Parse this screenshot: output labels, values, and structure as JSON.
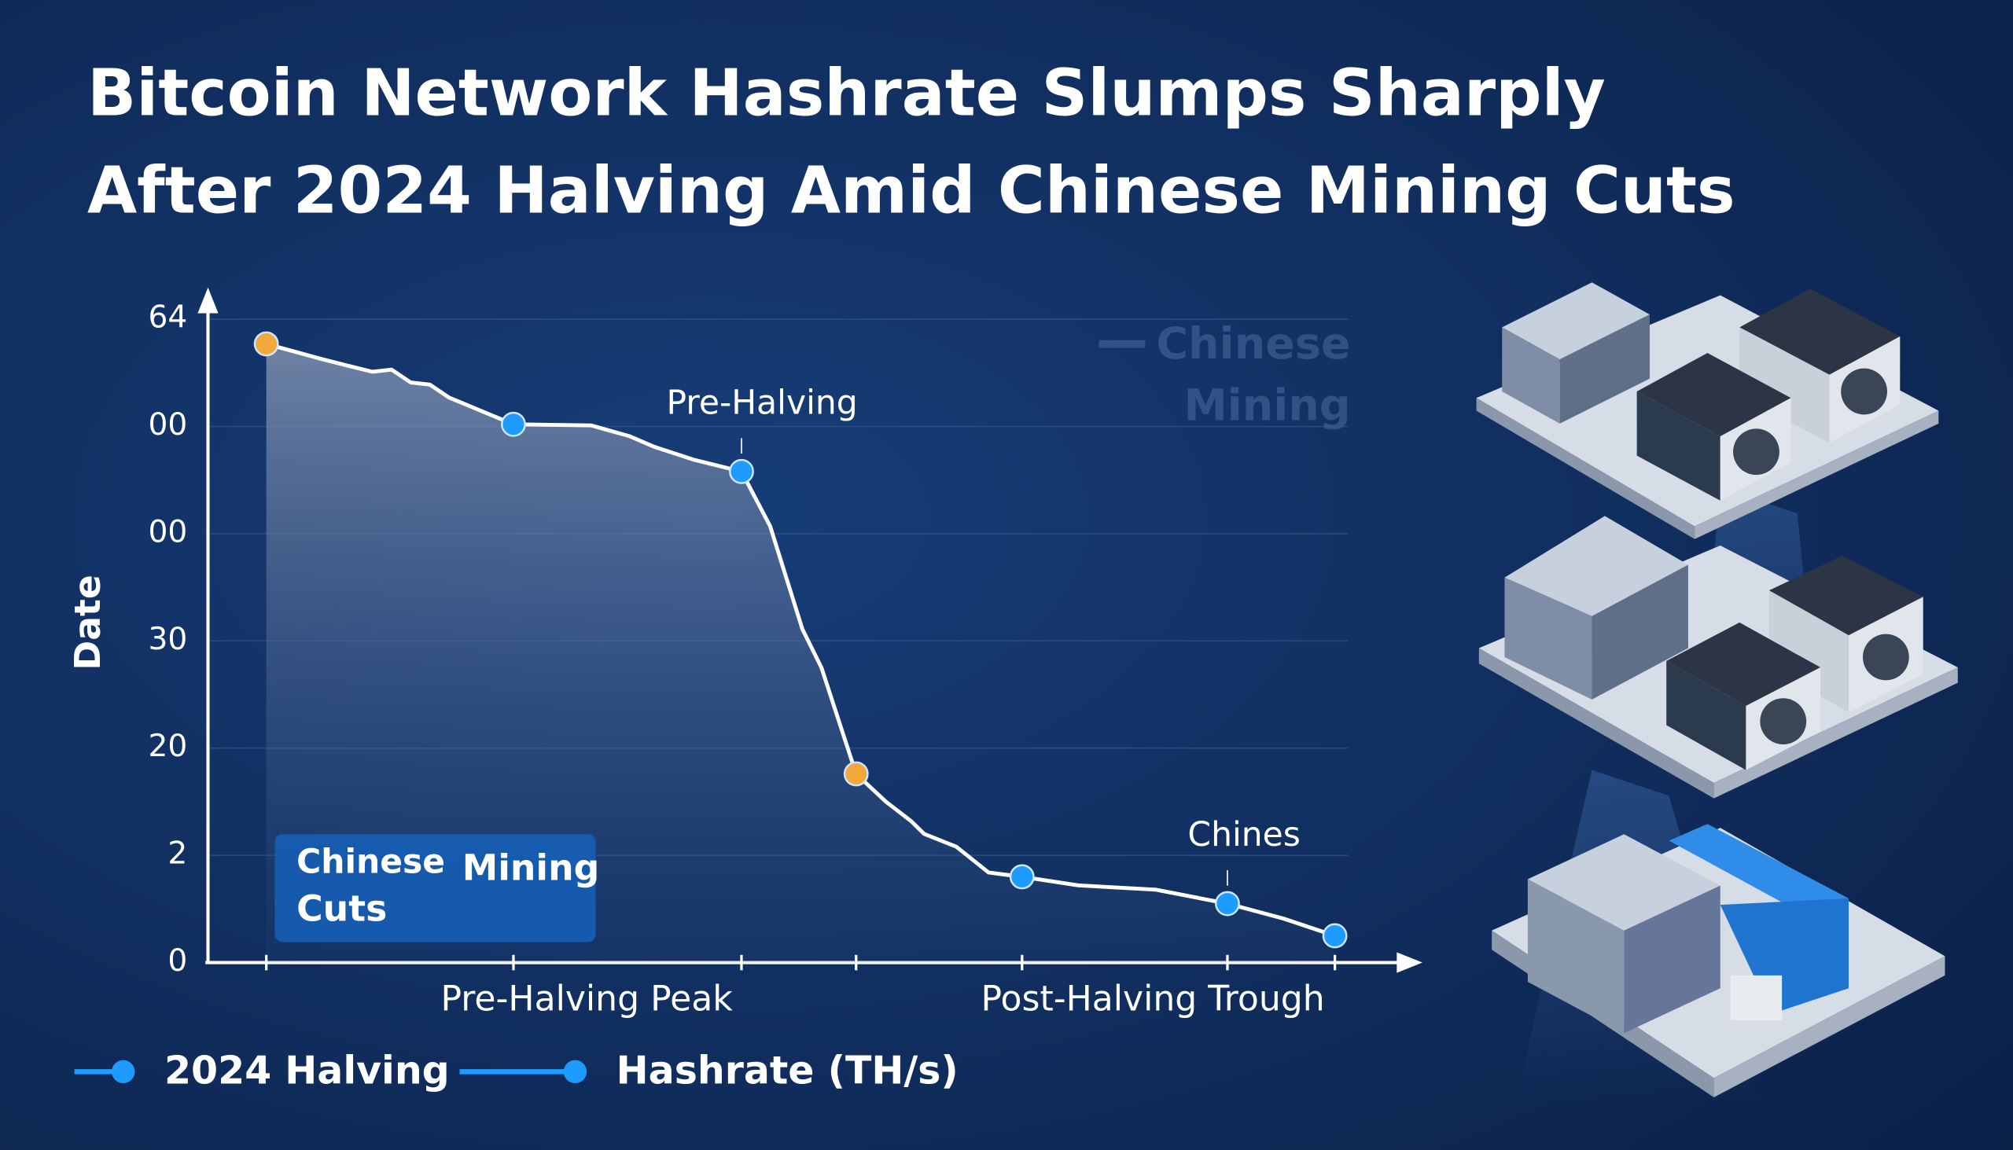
{
  "chart_data": {
    "type": "line",
    "title": [
      "Bitcoin Network Hashrate Slumps Sharply",
      "After 2024 Halving Amid Chinese Mining Cuts"
    ],
    "ylabel": "Date",
    "x_labels": [
      "Pre-Halving Peak",
      "Post-Halving Trough"
    ],
    "xlim": [
      0,
      100
    ],
    "ylim": [
      0,
      62
    ],
    "yticks": [
      0,
      {
        "value": 10,
        "label": "2"
      },
      20,
      30,
      {
        "value": 40,
        "label": "00"
      },
      {
        "value": 50,
        "label": "00"
      },
      {
        "value": 60,
        "label": "64"
      }
    ],
    "grid": true,
    "x": [
      5.1,
      9.7,
      11.8,
      14.0,
      15.6,
      17.2,
      18.8,
      20.4,
      25.8,
      32.3,
      35.5,
      37.6,
      40.9,
      44.9,
      47.3,
      50.0,
      51.6,
      54.5,
      57.0,
      59.1,
      60.2,
      62.9,
      65.6,
      68.4,
      73.1,
      79.6,
      85.6,
      90.3,
      94.6
    ],
    "series": [
      {
        "name": "Hashrate (TH/s)",
        "color": "#ffffff",
        "values": [
          57.7,
          56.3,
          55.7,
          55.1,
          55.3,
          54.1,
          53.9,
          52.7,
          50.2,
          50.1,
          49.1,
          48.1,
          46.9,
          45.8,
          40.7,
          31.1,
          27.5,
          17.6,
          15.0,
          13.2,
          12.0,
          10.8,
          8.4,
          8.0,
          7.2,
          6.8,
          5.5,
          4.1,
          2.5
        ]
      }
    ],
    "highlight_points": [
      {
        "index": 0,
        "color": "#f2a93b"
      },
      {
        "index": 8,
        "color": "#1e9bff"
      },
      {
        "index": 13,
        "color": "#1e9bff"
      },
      {
        "index": 17,
        "color": "#f2a93b"
      },
      {
        "index": 23,
        "color": "#1e9bff"
      },
      {
        "index": 26,
        "color": "#1e9bff"
      },
      {
        "index": 28,
        "color": "#1e9bff"
      }
    ],
    "annotations": [
      {
        "text": "Pre-Halving",
        "index": 13
      },
      {
        "text": "Chines",
        "index": 26
      }
    ],
    "callout": [
      "Chinese",
      "Mining",
      "Cuts"
    ],
    "watermark": [
      "Chinese",
      "Mining"
    ],
    "legend": [
      {
        "label": "2024 Halving",
        "color": "#1e9bff"
      }
    ],
    "legend_color": "#1e9bff"
  }
}
